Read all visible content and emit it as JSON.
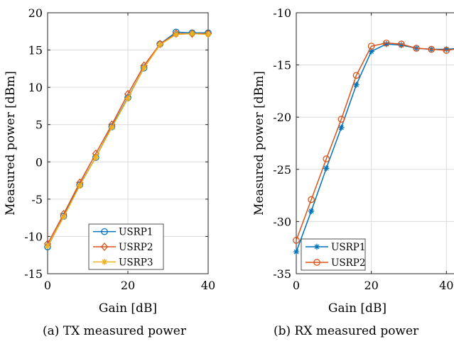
{
  "chart_data": [
    {
      "type": "line",
      "caption": "(a) TX measured power",
      "xlabel": "Gain [dB]",
      "ylabel": "Measured power [dBm]",
      "xlim": [
        0,
        40
      ],
      "ylim": [
        -15,
        20
      ],
      "xticks": [
        "0",
        "20",
        "40"
      ],
      "yticks": [
        "-15",
        "-10",
        "-5",
        "0",
        "5",
        "10",
        "15",
        "20"
      ],
      "grid": true,
      "legend_position": "bottom-right",
      "x": [
        0,
        4,
        8,
        12,
        16,
        20,
        24,
        28,
        32,
        36,
        40
      ],
      "series": [
        {
          "name": "USRP1",
          "color": "#0072BD",
          "marker": "circle",
          "values": [
            -11.4,
            -7.3,
            -3.1,
            0.6,
            4.7,
            8.6,
            12.6,
            15.8,
            17.4,
            17.3,
            17.3
          ]
        },
        {
          "name": "USRP2",
          "color": "#D95319",
          "marker": "diamond",
          "values": [
            -11.0,
            -7.0,
            -2.8,
            1.1,
            5.0,
            9.1,
            12.9,
            15.8,
            17.2,
            17.2,
            17.2
          ]
        },
        {
          "name": "USRP3",
          "color": "#EDB120",
          "marker": "star",
          "values": [
            -11.3,
            -7.4,
            -3.2,
            0.6,
            4.6,
            8.5,
            12.6,
            15.7,
            17.1,
            17.2,
            17.1
          ]
        }
      ]
    },
    {
      "type": "line",
      "caption": "(b) RX measured power",
      "xlabel": "Gain [dB]",
      "ylabel": "Measured power [dBm]",
      "xlim": [
        0,
        46
      ],
      "ylim": [
        -35,
        -10
      ],
      "xticks": [
        "0",
        "20",
        "40"
      ],
      "yticks": [
        "-35",
        "-30",
        "-25",
        "-20",
        "-15",
        "-10"
      ],
      "grid": true,
      "legend_position": "bottom-left",
      "x": [
        0,
        4,
        8,
        12,
        16,
        20,
        24,
        28,
        32,
        36,
        40,
        44
      ],
      "series": [
        {
          "name": "USRP1",
          "color": "#0072BD",
          "marker": "asterisk",
          "values": [
            -32.9,
            -29.0,
            -24.9,
            -21.0,
            -16.9,
            -13.7,
            -13.0,
            -13.1,
            -13.4,
            -13.5,
            -13.5,
            -13.4
          ]
        },
        {
          "name": "USRP2",
          "color": "#D95319",
          "marker": "circle",
          "values": [
            -31.8,
            -27.9,
            -24.0,
            -20.2,
            -16.0,
            -13.2,
            -12.9,
            -13.0,
            -13.4,
            -13.5,
            -13.6,
            -13.4
          ]
        }
      ]
    }
  ]
}
